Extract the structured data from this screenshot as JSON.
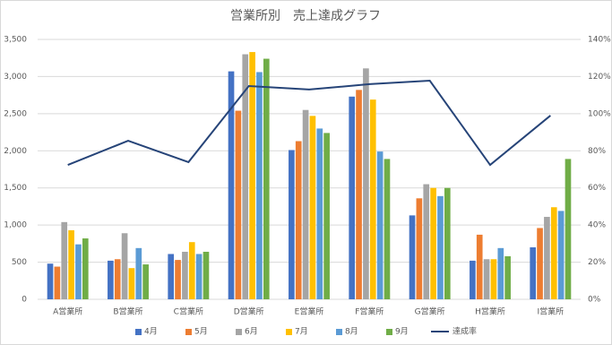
{
  "chart_data": {
    "type": "bar",
    "title": "営業所別　売上達成グラフ",
    "categories": [
      "A営業所",
      "B営業所",
      "C営業所",
      "D営業所",
      "E営業所",
      "F営業所",
      "G営業所",
      "H営業所",
      "I営業所"
    ],
    "series": [
      {
        "name": "4月",
        "color": "#4472c4",
        "values": [
          480,
          520,
          610,
          3070,
          2010,
          2730,
          1130,
          520,
          700
        ]
      },
      {
        "name": "5月",
        "color": "#ed7d31",
        "values": [
          440,
          540,
          530,
          2540,
          2130,
          2820,
          1360,
          870,
          960
        ]
      },
      {
        "name": "6月",
        "color": "#a5a5a5",
        "values": [
          1040,
          890,
          640,
          3300,
          2550,
          3110,
          1550,
          540,
          1110
        ]
      },
      {
        "name": "7月",
        "color": "#ffc000",
        "values": [
          930,
          420,
          770,
          3330,
          2470,
          2690,
          1500,
          540,
          1240
        ]
      },
      {
        "name": "8月",
        "color": "#5b9bd5",
        "values": [
          740,
          690,
          610,
          3060,
          2300,
          1990,
          1390,
          690,
          1190
        ]
      },
      {
        "name": "9月",
        "color": "#70ad47",
        "values": [
          820,
          470,
          640,
          3240,
          2240,
          1890,
          1500,
          580,
          1890
        ]
      },
      {
        "name": "達成率",
        "color": "#264478",
        "type": "line",
        "axis": "y2",
        "values": [
          72.4,
          85.4,
          73.9,
          114.9,
          113,
          115.9,
          117.8,
          72.4,
          99
        ]
      }
    ],
    "ylim": [
      0,
      3500
    ],
    "yticks": [
      0,
      {
        "value": 500,
        "label": "500"
      },
      {
        "value": 1000,
        "label": "1,000"
      },
      {
        "value": 1500,
        "label": "1,500"
      },
      {
        "value": 2000,
        "label": "2,000"
      },
      {
        "value": 2500,
        "label": "2,500"
      },
      {
        "value": 3000,
        "label": "3,000"
      },
      {
        "value": 3500,
        "label": "3,500"
      }
    ],
    "y2lim": [
      0,
      140
    ],
    "y2ticks": [
      {
        "value": 0,
        "label": "0%"
      },
      {
        "value": 20,
        "label": "20%"
      },
      {
        "value": 40,
        "label": "40%"
      },
      {
        "value": 60,
        "label": "60%"
      },
      {
        "value": 80,
        "label": "80%"
      },
      {
        "value": 100,
        "label": "100%"
      },
      {
        "value": 120,
        "label": "120%"
      },
      {
        "value": 140,
        "label": "140%"
      }
    ],
    "grid": true,
    "legend": "bottom"
  }
}
